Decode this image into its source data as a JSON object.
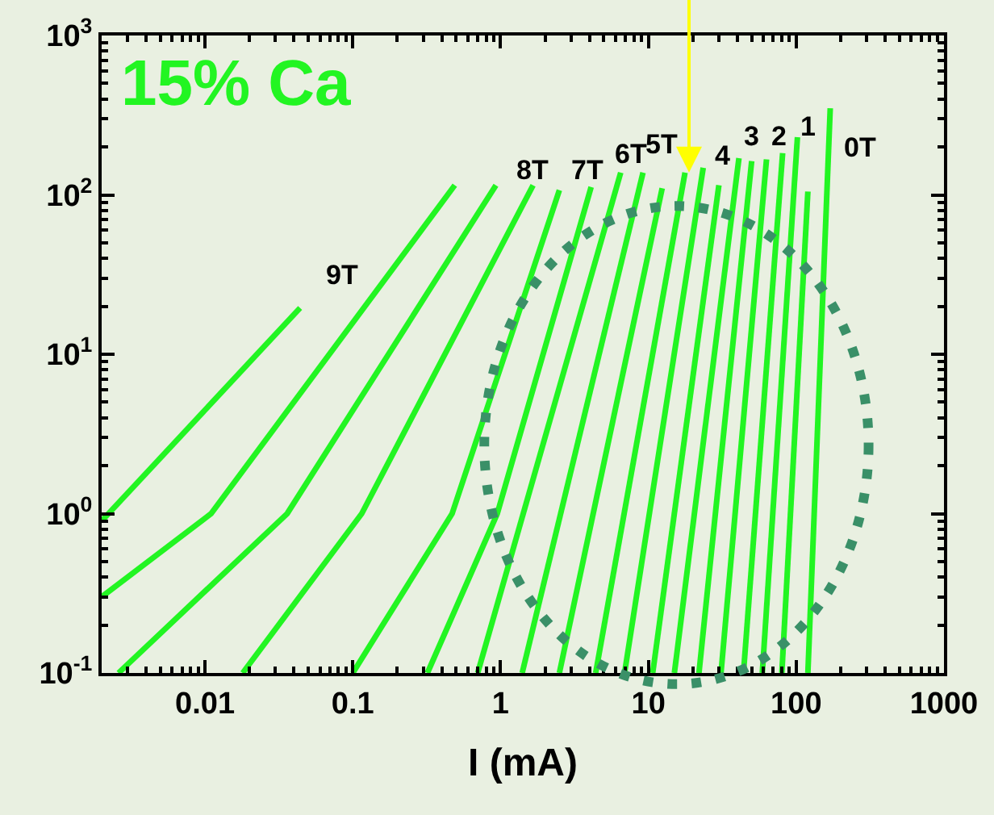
{
  "chart_data": {
    "type": "line",
    "xlabel": "I (mA)",
    "log": "xy",
    "grid": false,
    "xlim": [
      0.002,
      1000
    ],
    "xticks": [
      0.01,
      0.1,
      1,
      10,
      100,
      1000
    ],
    "ylim": [
      0.1,
      1000
    ],
    "yticks": [
      {
        "value": 0.1,
        "label": "10$^{-1}$"
      },
      {
        "value": 1,
        "label": "10$^{0}$"
      },
      {
        "value": 10,
        "label": "10$^{1}$"
      },
      {
        "value": 100,
        "label": "10$^{2}$"
      },
      {
        "value": 1000,
        "label": "10$^{3}$"
      }
    ],
    "annotations": [
      "15% Ca",
      "9T",
      "8T",
      "7T",
      "6T",
      "5T",
      "4",
      "3",
      "2",
      "1",
      "0T"
    ],
    "series": [
      {
        "color": "#22f522",
        "x": [
          0.002,
          0.044
        ],
        "values": [
          0.9,
          19.5
        ]
      },
      {
        "color": "#22f522",
        "x": [
          0.002,
          0.011,
          0.49
        ],
        "values": [
          0.3,
          1,
          115
        ]
      },
      {
        "color": "#22f522",
        "x": [
          0.0026,
          0.036,
          0.93
        ],
        "values": [
          0.1,
          1,
          115
        ]
      },
      {
        "color": "#22f522",
        "x": [
          0.018,
          0.115,
          1.66
        ],
        "values": [
          0.1,
          1,
          115
        ]
      },
      {
        "color": "#22f522",
        "x": [
          0.1,
          0.47,
          2.5
        ],
        "values": [
          0.1,
          1,
          107
        ]
      },
      {
        "color": "#22f522",
        "x": [
          0.32,
          0.95,
          4.1
        ],
        "values": [
          0.1,
          1,
          112
        ]
      },
      {
        "color": "#22f522",
        "x": [
          0.7,
          6.5
        ],
        "values": [
          0.1,
          138
        ]
      },
      {
        "color": "#22f522",
        "x": [
          1.4,
          9.2
        ],
        "values": [
          0.1,
          138
        ]
      },
      {
        "color": "#22f522",
        "x": [
          2.5,
          12.4
        ],
        "values": [
          0.1,
          110
        ]
      },
      {
        "color": "#22f522",
        "x": [
          4.4,
          17.7
        ],
        "values": [
          0.1,
          138
        ]
      },
      {
        "color": "#22f522",
        "x": [
          6.9,
          23.5
        ],
        "values": [
          0.1,
          148
        ]
      },
      {
        "color": "#22f522",
        "x": [
          10.7,
          30
        ],
        "values": [
          0.1,
          115
        ]
      },
      {
        "color": "#22f522",
        "x": [
          15,
          41
        ],
        "values": [
          0.1,
          170
        ]
      },
      {
        "color": "#22f522",
        "x": [
          22,
          50
        ],
        "values": [
          0.1,
          163
        ]
      },
      {
        "color": "#22f522",
        "x": [
          31,
          63
        ],
        "values": [
          0.1,
          167
        ]
      },
      {
        "color": "#22f522",
        "x": [
          44,
          81
        ],
        "values": [
          0.1,
          183
        ]
      },
      {
        "color": "#22f522",
        "x": [
          59,
          102
        ],
        "values": [
          0.1,
          230
        ]
      },
      {
        "color": "#22f522",
        "x": [
          80,
          120
        ],
        "values": [
          0.1,
          105
        ]
      },
      {
        "color": "#22f522",
        "x": [
          120,
          170
        ],
        "values": [
          0.1,
          350
        ]
      }
    ]
  }
}
